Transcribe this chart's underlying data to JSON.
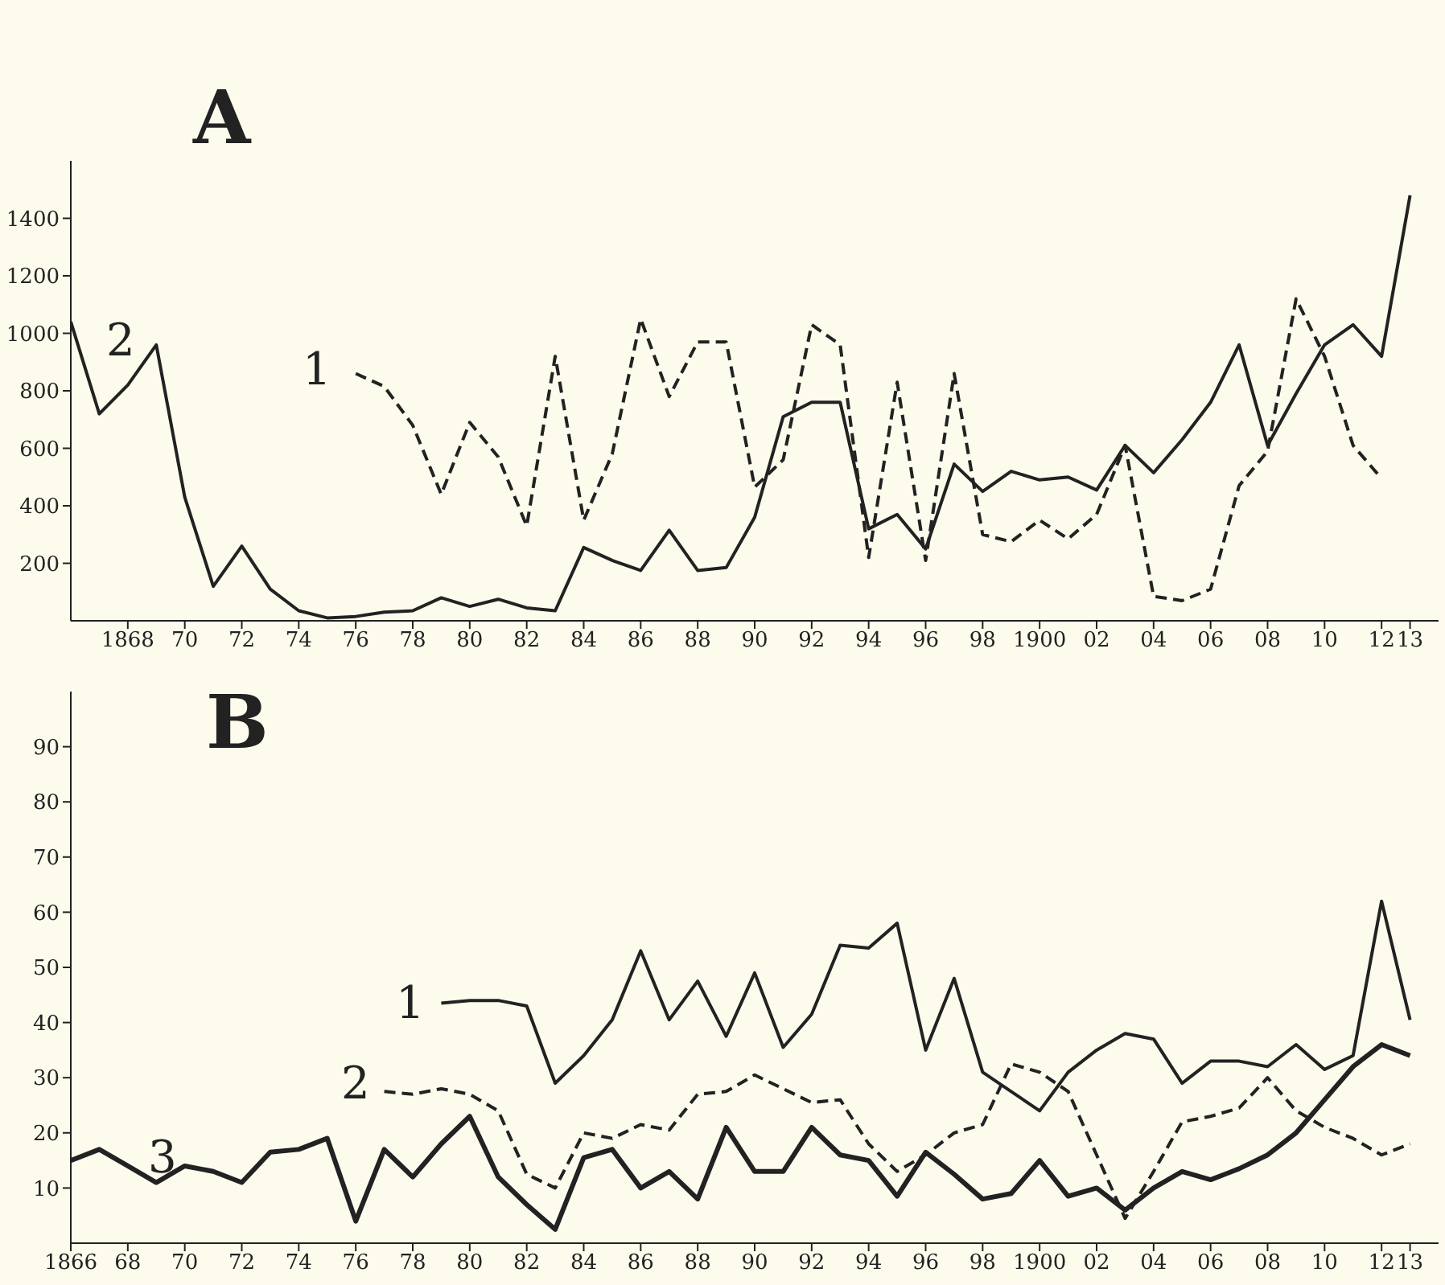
{
  "chart_data": [
    {
      "type": "line",
      "title": "A",
      "marker": "none",
      "grid": false,
      "legend": false,
      "x": [
        1866,
        1867,
        1868,
        1869,
        1870,
        1871,
        1872,
        1873,
        1874,
        1875,
        1876,
        1877,
        1878,
        1879,
        1880,
        1881,
        1882,
        1883,
        1884,
        1885,
        1886,
        1887,
        1888,
        1889,
        1890,
        1891,
        1892,
        1893,
        1894,
        1895,
        1896,
        1897,
        1898,
        1899,
        1900,
        1901,
        1902,
        1903,
        1904,
        1905,
        1906,
        1907,
        1908,
        1909,
        1910,
        1911,
        1912,
        1913
      ],
      "xlim": [
        1866,
        1914
      ],
      "xticks": [
        {
          "value": 1868,
          "label": "1868"
        },
        {
          "value": 1870,
          "label": "70"
        },
        {
          "value": 1872,
          "label": "72"
        },
        {
          "value": 1874,
          "label": "74"
        },
        {
          "value": 1876,
          "label": "76"
        },
        {
          "value": 1878,
          "label": "78"
        },
        {
          "value": 1880,
          "label": "80"
        },
        {
          "value": 1882,
          "label": "82"
        },
        {
          "value": 1884,
          "label": "84"
        },
        {
          "value": 1886,
          "label": "86"
        },
        {
          "value": 1888,
          "label": "88"
        },
        {
          "value": 1890,
          "label": "90"
        },
        {
          "value": 1892,
          "label": "92"
        },
        {
          "value": 1894,
          "label": "94"
        },
        {
          "value": 1896,
          "label": "96"
        },
        {
          "value": 1898,
          "label": "98"
        },
        {
          "value": 1900,
          "label": "1900"
        },
        {
          "value": 1902,
          "label": "02"
        },
        {
          "value": 1904,
          "label": "04"
        },
        {
          "value": 1906,
          "label": "06"
        },
        {
          "value": 1908,
          "label": "08"
        },
        {
          "value": 1910,
          "label": "10"
        },
        {
          "value": 1912,
          "label": "12"
        },
        {
          "value": 1913,
          "label": "13"
        }
      ],
      "ylim": [
        0,
        1600
      ],
      "yticks": [
        200,
        400,
        600,
        800,
        1000,
        1200,
        1400
      ],
      "series": [
        {
          "color": "#222222",
          "line_style": "dashed",
          "values": [
            null,
            null,
            null,
            null,
            null,
            null,
            null,
            null,
            null,
            null,
            860,
            815,
            680,
            440,
            690,
            570,
            330,
            920,
            350,
            580,
            1050,
            780,
            970,
            970,
            465,
            560,
            1030,
            960,
            220,
            830,
            210,
            860,
            300,
            275,
            350,
            285,
            370,
            610,
            85,
            70,
            110,
            470,
            590,
            1120,
            920,
            610,
            495,
            null
          ]
        },
        {
          "color": "#222222",
          "line_style": "solid",
          "values": [
            1040,
            720,
            820,
            960,
            430,
            120,
            260,
            110,
            35,
            10,
            15,
            30,
            35,
            80,
            50,
            75,
            45,
            35,
            255,
            210,
            175,
            315,
            175,
            185,
            360,
            710,
            760,
            760,
            320,
            370,
            250,
            545,
            450,
            520,
            490,
            500,
            455,
            610,
            515,
            630,
            760,
            960,
            610,
            790,
            960,
            1030,
            920,
            1480
          ]
        }
      ],
      "annotations": [
        "2",
        "1"
      ]
    },
    {
      "type": "line",
      "title": "B",
      "marker": "none",
      "grid": false,
      "legend": false,
      "x": [
        1866,
        1867,
        1868,
        1869,
        1870,
        1871,
        1872,
        1873,
        1874,
        1875,
        1876,
        1877,
        1878,
        1879,
        1880,
        1881,
        1882,
        1883,
        1884,
        1885,
        1886,
        1887,
        1888,
        1889,
        1890,
        1891,
        1892,
        1893,
        1894,
        1895,
        1896,
        1897,
        1898,
        1899,
        1900,
        1901,
        1902,
        1903,
        1904,
        1905,
        1906,
        1907,
        1908,
        1909,
        1910,
        1911,
        1912,
        1913
      ],
      "xlim": [
        1866,
        1914
      ],
      "xticks": [
        {
          "value": 1866,
          "label": "1866"
        },
        {
          "value": 1868,
          "label": "68"
        },
        {
          "value": 1870,
          "label": "70"
        },
        {
          "value": 1872,
          "label": "72"
        },
        {
          "value": 1874,
          "label": "74"
        },
        {
          "value": 1876,
          "label": "76"
        },
        {
          "value": 1878,
          "label": "78"
        },
        {
          "value": 1880,
          "label": "80"
        },
        {
          "value": 1882,
          "label": "82"
        },
        {
          "value": 1884,
          "label": "84"
        },
        {
          "value": 1886,
          "label": "86"
        },
        {
          "value": 1888,
          "label": "88"
        },
        {
          "value": 1890,
          "label": "90"
        },
        {
          "value": 1892,
          "label": "92"
        },
        {
          "value": 1894,
          "label": "94"
        },
        {
          "value": 1896,
          "label": "96"
        },
        {
          "value": 1898,
          "label": "98"
        },
        {
          "value": 1900,
          "label": "1900"
        },
        {
          "value": 1902,
          "label": "02"
        },
        {
          "value": 1904,
          "label": "04"
        },
        {
          "value": 1906,
          "label": "06"
        },
        {
          "value": 1908,
          "label": "08"
        },
        {
          "value": 1910,
          "label": "10"
        },
        {
          "value": 1912,
          "label": "12"
        },
        {
          "value": 1913,
          "label": "13"
        }
      ],
      "ylim": [
        0,
        100
      ],
      "yticks": [
        10,
        20,
        30,
        40,
        50,
        60,
        70,
        80,
        90
      ],
      "series": [
        {
          "color": "#222222",
          "line_style": "solid",
          "values": [
            null,
            null,
            null,
            null,
            null,
            null,
            null,
            null,
            null,
            null,
            null,
            null,
            null,
            43.5,
            44,
            44,
            43,
            29,
            34,
            40.5,
            53,
            40.5,
            47.5,
            37.5,
            49,
            35.5,
            41.5,
            54,
            53.5,
            58,
            35,
            48,
            31,
            27.5,
            24,
            31,
            35,
            38,
            37,
            29,
            33,
            33,
            32,
            36,
            31.5,
            34,
            62,
            40.5
          ]
        },
        {
          "color": "#222222",
          "line_style": "dashed",
          "values": [
            null,
            null,
            null,
            null,
            null,
            null,
            null,
            null,
            null,
            null,
            null,
            27.5,
            27,
            28,
            27,
            24,
            12.5,
            10,
            20,
            19,
            21.5,
            20.5,
            27,
            27.5,
            30.5,
            28,
            25.5,
            26,
            18,
            13,
            16,
            20,
            21.5,
            32.5,
            31,
            27.5,
            16,
            4.5,
            13,
            22,
            23,
            24.5,
            30,
            24,
            21,
            19,
            16,
            18
          ]
        },
        {
          "color": "#222222",
          "line_style": "solid",
          "values": [
            15,
            17,
            14,
            11,
            14,
            13,
            11,
            16.5,
            17,
            19,
            4,
            17,
            12,
            18,
            23,
            12,
            7,
            2.5,
            15.5,
            17,
            10,
            13,
            8,
            21,
            13,
            13,
            21,
            16,
            15,
            8.5,
            16.5,
            12.5,
            8,
            9,
            15,
            8.5,
            10,
            6,
            10,
            13,
            11.5,
            13.5,
            16,
            20,
            26,
            32,
            36,
            34
          ]
        }
      ],
      "annotations": [
        "1",
        "2",
        "3"
      ]
    }
  ]
}
